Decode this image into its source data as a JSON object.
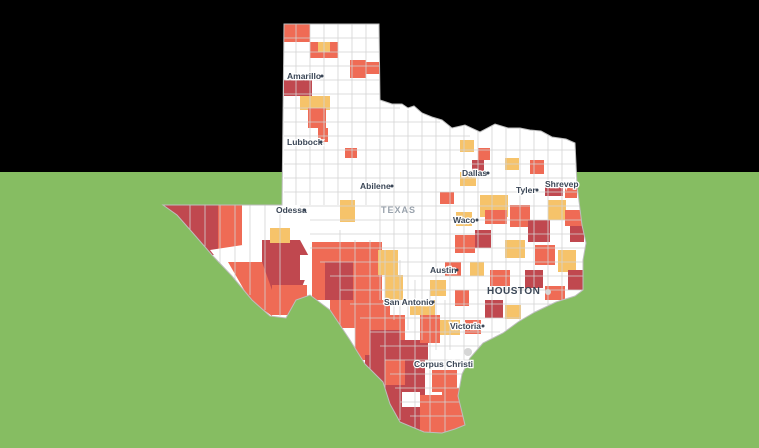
{
  "colors": {
    "top_band": "#000000",
    "bottom_band": "#86bd62",
    "state_fill": "#ffffff",
    "county_line": "#cfcfcf",
    "choropleth": {
      "light": "#f6c36a",
      "medium": "#ef6b55",
      "dark": "#c0484f"
    }
  },
  "map": {
    "state_label": "TEXAS",
    "cities": [
      {
        "name": "Amarillo",
        "label": "Amarillo",
        "dot": true
      },
      {
        "name": "Lubbock",
        "label": "Lubbock",
        "dot": true
      },
      {
        "name": "Abilene",
        "label": "Abilene",
        "dot": true
      },
      {
        "name": "Odessa",
        "label": "Odessa",
        "dot": true
      },
      {
        "name": "Dallas",
        "label": "Dallas",
        "dot": true
      },
      {
        "name": "Tyler",
        "label": "Tyler",
        "dot": true
      },
      {
        "name": "Shreveport",
        "label": "Shrevep",
        "dot": false
      },
      {
        "name": "Waco",
        "label": "Waco",
        "dot": true
      },
      {
        "name": "Austin",
        "label": "Austin",
        "dot": true
      },
      {
        "name": "Houston",
        "label": "HOUSTON",
        "dot": false
      },
      {
        "name": "San Antonio",
        "label": "San Antonio",
        "dot": true
      },
      {
        "name": "Victoria",
        "label": "Victoria",
        "dot": true
      },
      {
        "name": "Corpus Christi",
        "label": "Corpus Christi",
        "dot": false
      }
    ]
  }
}
